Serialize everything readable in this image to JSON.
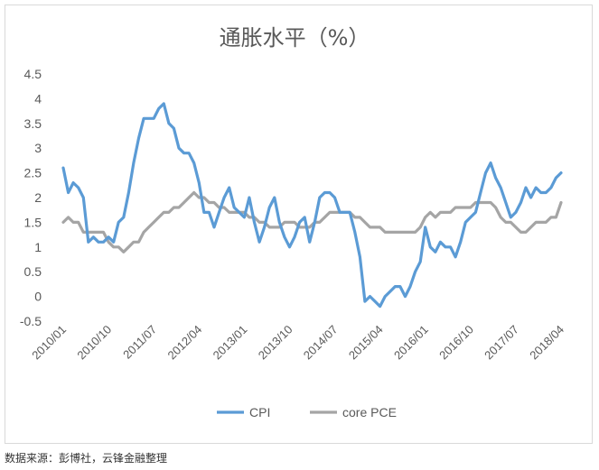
{
  "source_note": "数据来源：彭博社，云锋金融整理",
  "colors": {
    "cpi": "#5b9bd5",
    "core_pce": "#a5a5a5",
    "axis_text": "#595959"
  },
  "chart_data": {
    "type": "line",
    "title": "通胀水平（%）",
    "xlabel": "",
    "ylabel": "",
    "ylim": [
      -0.5,
      4.5
    ],
    "yticks": [
      "4.5",
      "4",
      "3.5",
      "3",
      "2.5",
      "2",
      "1.5",
      "1",
      "0.5",
      "0",
      "-0.5"
    ],
    "xticks": [
      "2010/01",
      "2010/10",
      "2011/07",
      "2012/04",
      "2013/01",
      "2013/10",
      "2014/07",
      "2015/04",
      "2016/01",
      "2016/10",
      "2017/07",
      "2018/04"
    ],
    "x_start": "2010/01",
    "x_end": "2018/04",
    "frequency": "monthly",
    "grid": false,
    "legend_position": "bottom",
    "series": [
      {
        "name": "CPI",
        "values": [
          2.6,
          2.1,
          2.3,
          2.2,
          2.0,
          1.1,
          1.2,
          1.1,
          1.1,
          1.2,
          1.1,
          1.5,
          1.6,
          2.1,
          2.7,
          3.2,
          3.6,
          3.6,
          3.6,
          3.8,
          3.9,
          3.5,
          3.4,
          3.0,
          2.9,
          2.9,
          2.7,
          2.3,
          1.7,
          1.7,
          1.4,
          1.7,
          2.0,
          2.2,
          1.8,
          1.7,
          1.6,
          2.0,
          1.5,
          1.1,
          1.4,
          1.8,
          2.0,
          1.5,
          1.2,
          1.0,
          1.2,
          1.5,
          1.6,
          1.1,
          1.5,
          2.0,
          2.1,
          2.1,
          2.0,
          1.7,
          1.7,
          1.7,
          1.3,
          0.8,
          -0.1,
          0.0,
          -0.1,
          -0.2,
          0.0,
          0.1,
          0.2,
          0.2,
          0.0,
          0.2,
          0.5,
          0.7,
          1.4,
          1.0,
          0.9,
          1.1,
          1.0,
          1.0,
          0.8,
          1.1,
          1.5,
          1.6,
          1.7,
          2.1,
          2.5,
          2.7,
          2.4,
          2.2,
          1.9,
          1.6,
          1.7,
          1.9,
          2.2,
          2.0,
          2.2,
          2.1,
          2.1,
          2.2,
          2.4,
          2.5
        ]
      },
      {
        "name": "core PCE",
        "values": [
          1.5,
          1.6,
          1.5,
          1.5,
          1.3,
          1.3,
          1.3,
          1.3,
          1.3,
          1.1,
          1.0,
          1.0,
          0.9,
          1.0,
          1.1,
          1.1,
          1.3,
          1.4,
          1.5,
          1.6,
          1.7,
          1.7,
          1.8,
          1.8,
          1.9,
          2.0,
          2.1,
          2.0,
          2.0,
          1.9,
          1.9,
          1.8,
          1.8,
          1.7,
          1.7,
          1.7,
          1.7,
          1.6,
          1.6,
          1.5,
          1.5,
          1.4,
          1.4,
          1.4,
          1.5,
          1.5,
          1.5,
          1.4,
          1.4,
          1.4,
          1.5,
          1.5,
          1.6,
          1.7,
          1.7,
          1.7,
          1.7,
          1.7,
          1.6,
          1.6,
          1.5,
          1.4,
          1.4,
          1.4,
          1.3,
          1.3,
          1.3,
          1.3,
          1.3,
          1.3,
          1.3,
          1.4,
          1.6,
          1.7,
          1.6,
          1.7,
          1.7,
          1.7,
          1.8,
          1.8,
          1.8,
          1.8,
          1.9,
          1.9,
          1.9,
          1.9,
          1.8,
          1.6,
          1.5,
          1.5,
          1.4,
          1.3,
          1.3,
          1.4,
          1.5,
          1.5,
          1.5,
          1.6,
          1.6,
          1.9
        ]
      }
    ]
  }
}
